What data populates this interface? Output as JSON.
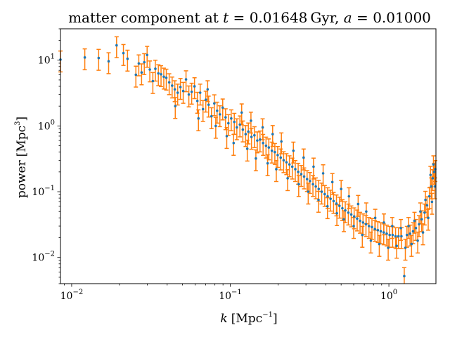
{
  "chart_data": {
    "type": "scatter",
    "title": {
      "prefix": "matter component at ",
      "t_symbol": "t",
      "t_value": "0.01648",
      "t_unit": "Gyr",
      "separator": ", ",
      "a_symbol": "a",
      "a_value": "0.01000"
    },
    "xlabel": {
      "symbol": "k",
      "unit_open": "[Mpc",
      "unit_exp": "−1",
      "unit_close": "]"
    },
    "ylabel": {
      "text": "power",
      "unit_open": "[Mpc",
      "unit_exp": "3",
      "unit_close": "]"
    },
    "x_scale": "log",
    "y_scale": "log",
    "xlim": [
      0.0085,
      1.98
    ],
    "ylim": [
      0.004,
      30
    ],
    "xticks": [
      {
        "value": 0.01,
        "base": "10",
        "exp": "−2"
      },
      {
        "value": 0.1,
        "base": "10",
        "exp": "−1"
      },
      {
        "value": 1,
        "base": "10",
        "exp": "0"
      }
    ],
    "yticks": [
      {
        "value": 0.01,
        "base": "10",
        "exp": "−2"
      },
      {
        "value": 0.1,
        "base": "10",
        "exp": "−1"
      },
      {
        "value": 1,
        "base": "10",
        "exp": "0"
      },
      {
        "value": 10,
        "base": "10",
        "exp": "1"
      }
    ],
    "grid": false,
    "colors": {
      "points": "#1f77b4",
      "errorbars": "#ff7f0e"
    },
    "error_fraction": 0.35,
    "series": [
      {
        "points": [
          [
            0.0085,
            10.2
          ],
          [
            0.0121,
            11.0
          ],
          [
            0.0148,
            10.8
          ],
          [
            0.0171,
            9.6
          ],
          [
            0.0192,
            16.8
          ],
          [
            0.0212,
            12.8
          ],
          [
            0.0225,
            10.5
          ],
          [
            0.0254,
            6.0
          ],
          [
            0.0265,
            8.9
          ],
          [
            0.0276,
            6.5
          ],
          [
            0.0287,
            9.3
          ],
          [
            0.0299,
            12.0
          ],
          [
            0.0311,
            7.2
          ],
          [
            0.0325,
            4.8
          ],
          [
            0.0337,
            7.4
          ],
          [
            0.0352,
            6.3
          ],
          [
            0.0366,
            6.1
          ],
          [
            0.0381,
            5.6
          ],
          [
            0.0395,
            5.4
          ],
          [
            0.0412,
            4.6
          ],
          [
            0.043,
            4.1
          ],
          [
            0.0447,
            3.6
          ],
          [
            0.0466,
            3.2
          ],
          [
            0.0485,
            3.9
          ],
          [
            0.0505,
            3.4
          ],
          [
            0.0526,
            5.1
          ],
          [
            0.0548,
            3.0
          ],
          [
            0.0571,
            3.3
          ],
          [
            0.0595,
            4.0
          ],
          [
            0.062,
            2.4
          ],
          [
            0.0646,
            3.2
          ],
          [
            0.0673,
            1.8
          ],
          [
            0.0701,
            2.5
          ],
          [
            0.073,
            2.1
          ],
          [
            0.0761,
            1.4
          ],
          [
            0.0793,
            2.2
          ],
          [
            0.0826,
            1.7
          ],
          [
            0.086,
            1.5
          ],
          [
            0.0896,
            1.9
          ],
          [
            0.0934,
            1.35
          ],
          [
            0.0973,
            1.1
          ],
          [
            0.1014,
            1.3
          ],
          [
            0.106,
            1.15
          ],
          [
            0.11,
            0.95
          ],
          [
            0.115,
            1.05
          ],
          [
            0.12,
            0.88
          ],
          [
            0.125,
            0.75
          ],
          [
            0.13,
            0.82
          ],
          [
            0.136,
            0.68
          ],
          [
            0.142,
            0.72
          ],
          [
            0.148,
            0.6
          ],
          [
            0.154,
            0.62
          ],
          [
            0.161,
            0.55
          ],
          [
            0.168,
            0.5
          ],
          [
            0.175,
            0.47
          ],
          [
            0.183,
            0.42
          ],
          [
            0.191,
            0.4
          ],
          [
            0.199,
            0.36
          ],
          [
            0.208,
            0.33
          ],
          [
            0.217,
            0.3
          ],
          [
            0.226,
            0.28
          ],
          [
            0.236,
            0.26
          ],
          [
            0.246,
            0.24
          ],
          [
            0.257,
            0.22
          ],
          [
            0.268,
            0.2
          ],
          [
            0.28,
            0.185
          ],
          [
            0.292,
            0.17
          ],
          [
            0.305,
            0.155
          ],
          [
            0.318,
            0.145
          ],
          [
            0.332,
            0.13
          ],
          [
            0.346,
            0.12
          ],
          [
            0.361,
            0.11
          ],
          [
            0.377,
            0.1
          ],
          [
            0.394,
            0.092
          ],
          [
            0.411,
            0.085
          ],
          [
            0.429,
            0.078
          ],
          [
            0.448,
            0.072
          ],
          [
            0.467,
            0.066
          ],
          [
            0.488,
            0.061
          ],
          [
            0.509,
            0.056
          ],
          [
            0.531,
            0.052
          ],
          [
            0.555,
            0.048
          ],
          [
            0.579,
            0.045
          ],
          [
            0.604,
            0.042
          ],
          [
            0.631,
            0.039
          ],
          [
            0.658,
            0.036
          ],
          [
            0.687,
            0.034
          ],
          [
            0.717,
            0.032
          ],
          [
            0.749,
            0.03
          ],
          [
            0.782,
            0.029
          ],
          [
            0.816,
            0.027
          ],
          [
            0.852,
            0.026
          ],
          [
            0.889,
            0.025
          ],
          [
            0.928,
            0.024
          ],
          [
            0.969,
            0.023
          ],
          [
            1.011,
            0.022
          ],
          [
            1.056,
            0.022
          ],
          [
            1.102,
            0.021
          ],
          [
            1.15,
            0.021
          ],
          [
            1.2,
            0.021
          ],
          [
            1.25,
            0.0052
          ],
          [
            1.3,
            0.022
          ],
          [
            1.36,
            0.023
          ],
          [
            1.42,
            0.025
          ],
          [
            1.48,
            0.028
          ],
          [
            1.55,
            0.032
          ],
          [
            1.61,
            0.038
          ],
          [
            1.68,
            0.048
          ],
          [
            1.74,
            0.062
          ],
          [
            1.8,
            0.085
          ],
          [
            1.85,
            0.12
          ],
          [
            1.89,
            0.16
          ],
          [
            1.93,
            0.2
          ],
          [
            1.96,
            0.22
          ],
          [
            0.045,
            2.0
          ],
          [
            0.063,
            1.3
          ],
          [
            0.072,
            3.6
          ],
          [
            0.081,
            1.0
          ],
          [
            0.095,
            0.7
          ],
          [
            0.105,
            0.55
          ],
          [
            0.118,
            1.6
          ],
          [
            0.128,
            0.45
          ],
          [
            0.135,
            1.2
          ],
          [
            0.145,
            0.32
          ],
          [
            0.16,
            0.95
          ],
          [
            0.172,
            0.27
          ],
          [
            0.185,
            0.75
          ],
          [
            0.195,
            0.22
          ],
          [
            0.21,
            0.58
          ],
          [
            0.23,
            0.16
          ],
          [
            0.25,
            0.42
          ],
          [
            0.27,
            0.13
          ],
          [
            0.29,
            0.33
          ],
          [
            0.31,
            0.1
          ],
          [
            0.335,
            0.24
          ],
          [
            0.36,
            0.075
          ],
          [
            0.385,
            0.19
          ],
          [
            0.41,
            0.06
          ],
          [
            0.44,
            0.14
          ],
          [
            0.47,
            0.047
          ],
          [
            0.5,
            0.11
          ],
          [
            0.52,
            0.038
          ],
          [
            0.56,
            0.085
          ],
          [
            0.6,
            0.03
          ],
          [
            0.64,
            0.065
          ],
          [
            0.68,
            0.022
          ],
          [
            0.72,
            0.05
          ],
          [
            0.77,
            0.018
          ],
          [
            0.82,
            0.04
          ],
          [
            0.87,
            0.016
          ],
          [
            0.93,
            0.034
          ],
          [
            0.99,
            0.014
          ],
          [
            1.05,
            0.03
          ],
          [
            1.12,
            0.015
          ],
          [
            1.19,
            0.028
          ],
          [
            1.27,
            0.014
          ],
          [
            1.33,
            0.03
          ],
          [
            1.39,
            0.016
          ],
          [
            1.45,
            0.036
          ],
          [
            1.52,
            0.018
          ],
          [
            1.58,
            0.05
          ],
          [
            1.64,
            0.024
          ],
          [
            1.7,
            0.075
          ],
          [
            1.77,
            0.04
          ],
          [
            1.83,
            0.18
          ],
          [
            1.87,
            0.07
          ],
          [
            1.91,
            0.26
          ],
          [
            1.95,
            0.12
          ]
        ]
      }
    ]
  }
}
